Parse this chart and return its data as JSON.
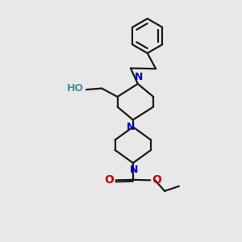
{
  "background_color": "#e8e8e8",
  "bond_color": "#1a1a1a",
  "N_color": "#0000cc",
  "O_color": "#cc0000",
  "HO_color": "#4a9090",
  "line_width": 1.6,
  "figsize": [
    3.0,
    3.0
  ],
  "dpi": 100,
  "xlim": [
    0,
    10
  ],
  "ylim": [
    0,
    10
  ]
}
